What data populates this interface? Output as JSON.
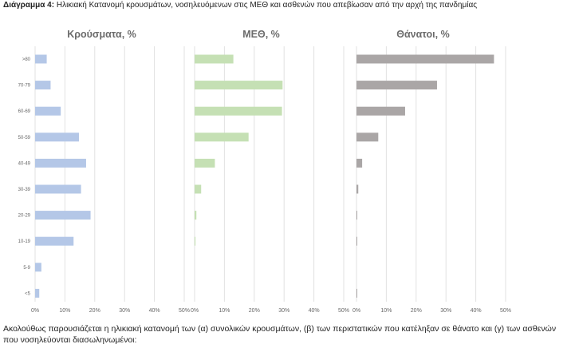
{
  "caption": {
    "label": "Διάγραμμα 4:",
    "text": "Ηλικιακή Κατανομή κρουσμάτων, νοσηλευόμενων στις ΜΕΘ και ασθενών που απεβίωσαν από την αρχή της πανδημίας"
  },
  "paragraph": "Ακολούθως παρουσιάζεται η ηλικιακή κατανομή των (α) συνολικών κρουσμάτων, (β) των περιστατικών που κατέληξαν σε θάνατο και (γ) των ασθενών που νοσηλεύονται διασωληνωμένοι:",
  "chart_data": {
    "type": "bar",
    "orientation": "horizontal",
    "categories": [
      ">80",
      "70-79",
      "60-69",
      "50-59",
      "40-49",
      "30-39",
      "20-29",
      "10-19",
      "5-9",
      "<5"
    ],
    "xlim": [
      0,
      50
    ],
    "xticks": [
      "0%",
      "10%",
      "20%",
      "30%",
      "40%",
      "50%"
    ],
    "grid": true,
    "series": [
      {
        "name": "Κρούσματα, %",
        "color": "#b4c7e7",
        "values": [
          3.9,
          5.2,
          8.6,
          14.7,
          17.1,
          15.4,
          18.6,
          12.9,
          2.1,
          1.4
        ]
      },
      {
        "name": "ΜΕΘ, %",
        "color": "#c5e0b4",
        "values": [
          13.0,
          29.5,
          29.3,
          18.1,
          6.8,
          2.2,
          0.6,
          0.3,
          0,
          0
        ]
      },
      {
        "name": "Θάνατοι, %",
        "color": "#aaa6a6",
        "values": [
          46.1,
          27.0,
          16.3,
          7.3,
          1.9,
          0.6,
          0.2,
          0.2,
          0,
          0.2
        ]
      }
    ]
  }
}
